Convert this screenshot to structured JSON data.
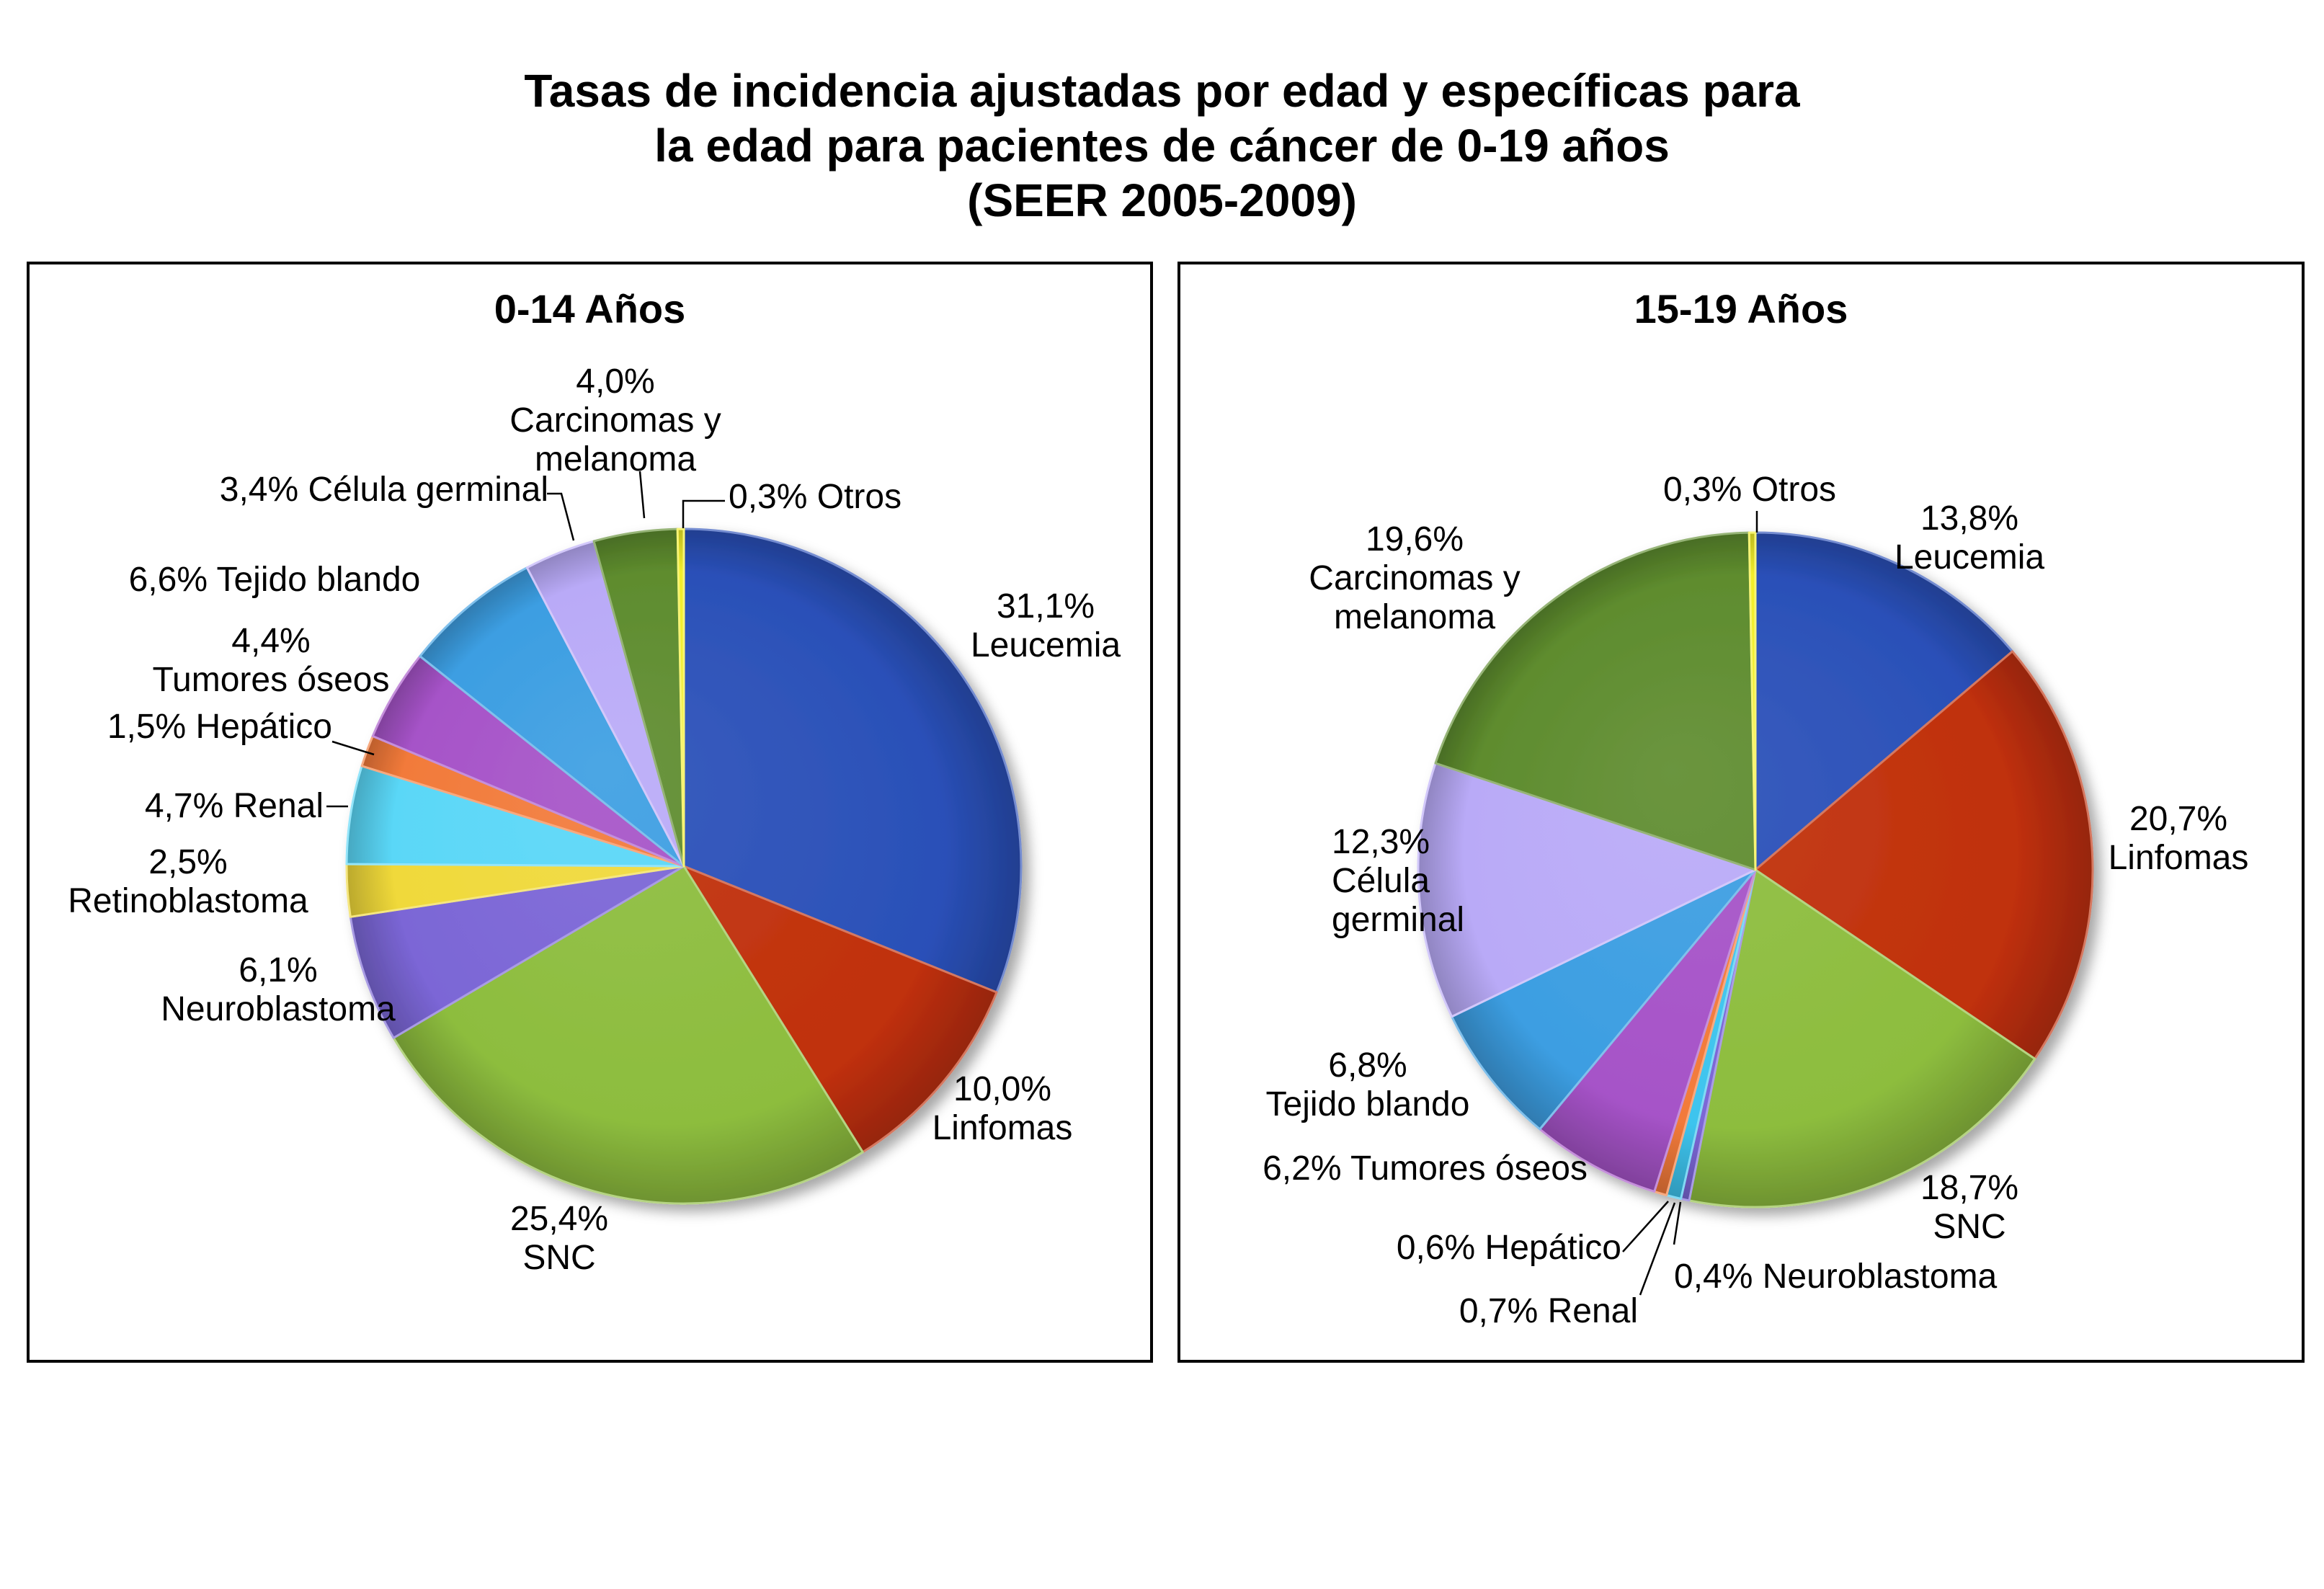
{
  "title_lines": [
    "Tasas de incidencia ajustadas por edad y específicas para",
    "la edad para pacientes de cáncer de 0-19 años",
    "(SEER 2005-2009)"
  ],
  "chart_data": [
    {
      "type": "pie",
      "title": "0-14 Años",
      "slices": [
        {
          "category": "Leucemia",
          "value": 31.1,
          "label_lines": [
            "31,1%",
            "Leucemia"
          ],
          "color": "#2a50b8"
        },
        {
          "category": "Linfomas",
          "value": 10.0,
          "label_lines": [
            "10,0%",
            "Linfomas"
          ],
          "color": "#c0300a"
        },
        {
          "category": "SNC",
          "value": 25.4,
          "label_lines": [
            "25,4%",
            "SNC"
          ],
          "color": "#8dbd3e"
        },
        {
          "category": "Neuroblastoma",
          "value": 6.1,
          "label_lines": [
            "6,1%",
            "Neuroblastoma"
          ],
          "color": "#7b66d6"
        },
        {
          "category": "Retinoblastoma",
          "value": 2.5,
          "label_lines": [
            "2,5%",
            "Retinoblastoma"
          ],
          "color": "#f0d93a"
        },
        {
          "category": "Renal",
          "value": 4.7,
          "label_lines": [
            "4,7% Renal"
          ],
          "color": "#5ad7f7"
        },
        {
          "category": "Hepático",
          "value": 1.5,
          "label_lines": [
            "1,5% Hepático"
          ],
          "color": "#f27a3a"
        },
        {
          "category": "Tumores óseos",
          "value": 4.4,
          "label_lines": [
            "4,4%",
            "Tumores óseos"
          ],
          "color": "#a653c8"
        },
        {
          "category": "Tejido blando",
          "value": 6.6,
          "label_lines": [
            "6,6% Tejido blando"
          ],
          "color": "#3c9ee2"
        },
        {
          "category": "Célula germinal",
          "value": 3.4,
          "label_lines": [
            "3,4% Célula germinal"
          ],
          "color": "#b9aaf7"
        },
        {
          "category": "Carcinomas y melanoma",
          "value": 4.0,
          "label_lines": [
            "4,0%",
            "Carcinomas y",
            "melanoma"
          ],
          "color": "#5e8c2e"
        },
        {
          "category": "Otros",
          "value": 0.3,
          "label_lines": [
            "0,3% Otros"
          ],
          "color": "#f2ee2a"
        }
      ]
    },
    {
      "type": "pie",
      "title": "15-19 Años",
      "slices": [
        {
          "category": "Leucemia",
          "value": 13.8,
          "label_lines": [
            "13,8%",
            "Leucemia"
          ],
          "color": "#2a50b8"
        },
        {
          "category": "Linfomas",
          "value": 20.7,
          "label_lines": [
            "20,7%",
            "Linfomas"
          ],
          "color": "#c0300a"
        },
        {
          "category": "SNC",
          "value": 18.7,
          "label_lines": [
            "18,7%",
            "SNC"
          ],
          "color": "#8dbd3e"
        },
        {
          "category": "Neuroblastoma",
          "value": 0.4,
          "label_lines": [
            "0,4% Neuroblastoma"
          ],
          "color": "#7b66d6"
        },
        {
          "category": "Renal",
          "value": 0.7,
          "label_lines": [
            "0,7% Renal"
          ],
          "color": "#3ec4ee"
        },
        {
          "category": "Hepático",
          "value": 0.6,
          "label_lines": [
            "0,6% Hepático"
          ],
          "color": "#f27a3a"
        },
        {
          "category": "Tumores óseos",
          "value": 6.2,
          "label_lines": [
            "6,2% Tumores óseos"
          ],
          "color": "#a653c8"
        },
        {
          "category": "Tejido blando",
          "value": 6.8,
          "label_lines": [
            "6,8%",
            "Tejido blando"
          ],
          "color": "#3c9ee2"
        },
        {
          "category": "Célula germinal",
          "value": 12.3,
          "label_lines": [
            "12,3%",
            "Célula",
            "germinal"
          ],
          "color": "#b9aaf7"
        },
        {
          "category": "Carcinomas y melanoma",
          "value": 19.6,
          "label_lines": [
            "19,6%",
            "Carcinomas y",
            "melanoma"
          ],
          "color": "#5e8c2e"
        },
        {
          "category": "Otros",
          "value": 0.3,
          "label_lines": [
            "0,3% Otros"
          ],
          "color": "#f2ee2a"
        }
      ]
    }
  ]
}
